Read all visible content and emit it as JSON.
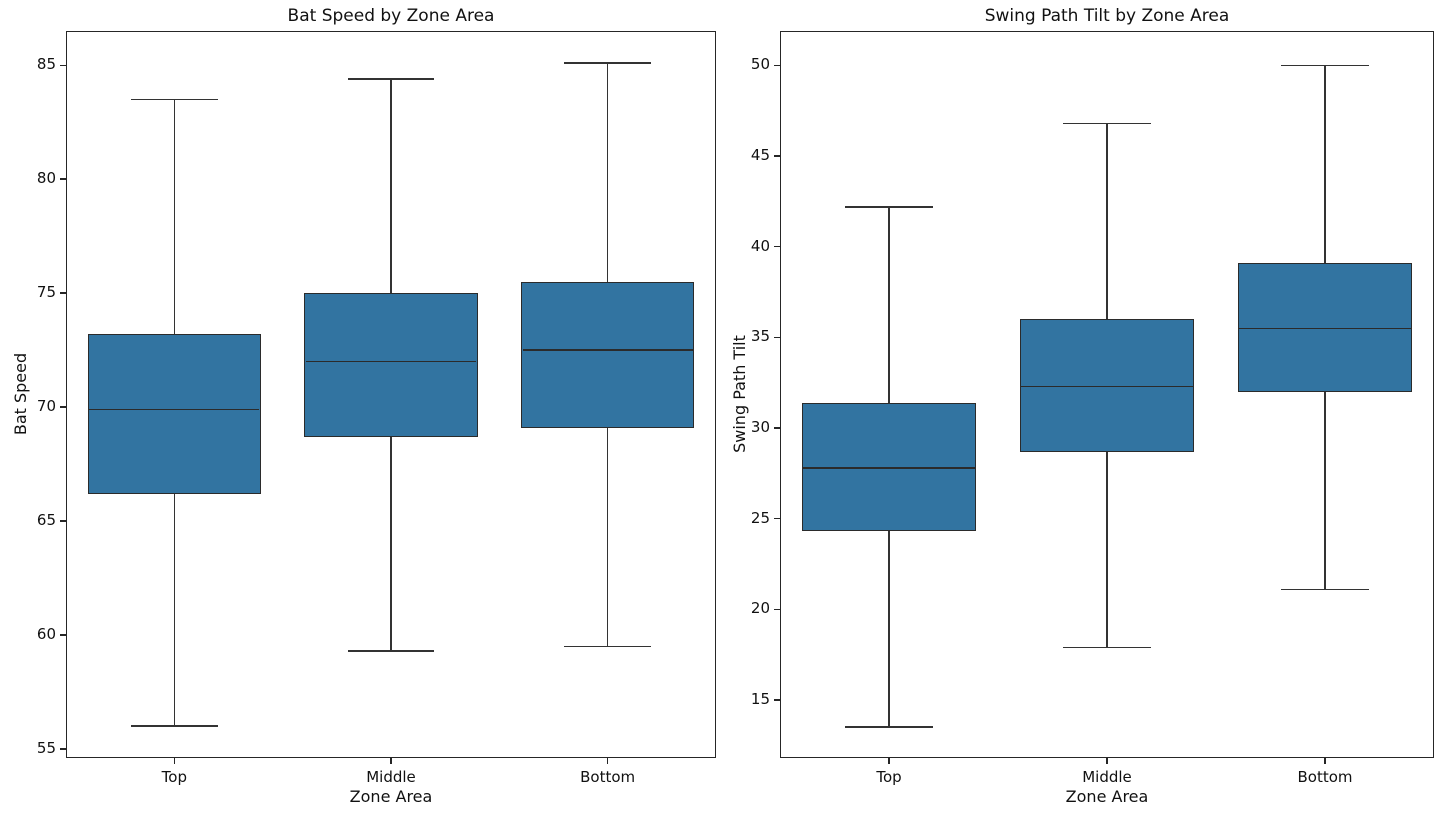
{
  "figure": {
    "background": "#ffffff",
    "box_fill": "#3274a1",
    "box_edge": "#2b2b2b",
    "whisker_color": "#333333",
    "text_color": "#111111"
  },
  "chart_data": [
    {
      "type": "box",
      "title": "Bat Speed by Zone Area",
      "xlabel": "Zone Area",
      "ylabel": "Bat Speed",
      "categories": [
        "Top",
        "Middle",
        "Bottom"
      ],
      "yticks": [
        55,
        60,
        65,
        70,
        75,
        80,
        85
      ],
      "ylim": [
        54.6,
        86.5
      ],
      "grid": false,
      "boxes": [
        {
          "category": "Top",
          "whisker_low": 56.0,
          "q1": 66.2,
          "median": 69.9,
          "q3": 73.2,
          "whisker_high": 83.5
        },
        {
          "category": "Middle",
          "whisker_low": 59.3,
          "q1": 68.7,
          "median": 72.0,
          "q3": 75.0,
          "whisker_high": 84.4
        },
        {
          "category": "Bottom",
          "whisker_low": 59.5,
          "q1": 69.1,
          "median": 72.5,
          "q3": 75.5,
          "whisker_high": 85.1
        }
      ]
    },
    {
      "type": "box",
      "title": "Swing Path Tilt by Zone Area",
      "xlabel": "Zone Area",
      "ylabel": "Swing Path Tilt",
      "categories": [
        "Top",
        "Middle",
        "Bottom"
      ],
      "yticks": [
        15,
        20,
        25,
        30,
        35,
        40,
        45,
        50
      ],
      "ylim": [
        11.8,
        51.9
      ],
      "grid": false,
      "boxes": [
        {
          "category": "Top",
          "whisker_low": 13.5,
          "q1": 24.3,
          "median": 27.8,
          "q3": 31.4,
          "whisker_high": 42.2
        },
        {
          "category": "Middle",
          "whisker_low": 17.9,
          "q1": 28.7,
          "median": 32.3,
          "q3": 36.0,
          "whisker_high": 46.8
        },
        {
          "category": "Bottom",
          "whisker_low": 21.1,
          "q1": 32.0,
          "median": 35.5,
          "q3": 39.1,
          "whisker_high": 50.0
        }
      ]
    }
  ]
}
